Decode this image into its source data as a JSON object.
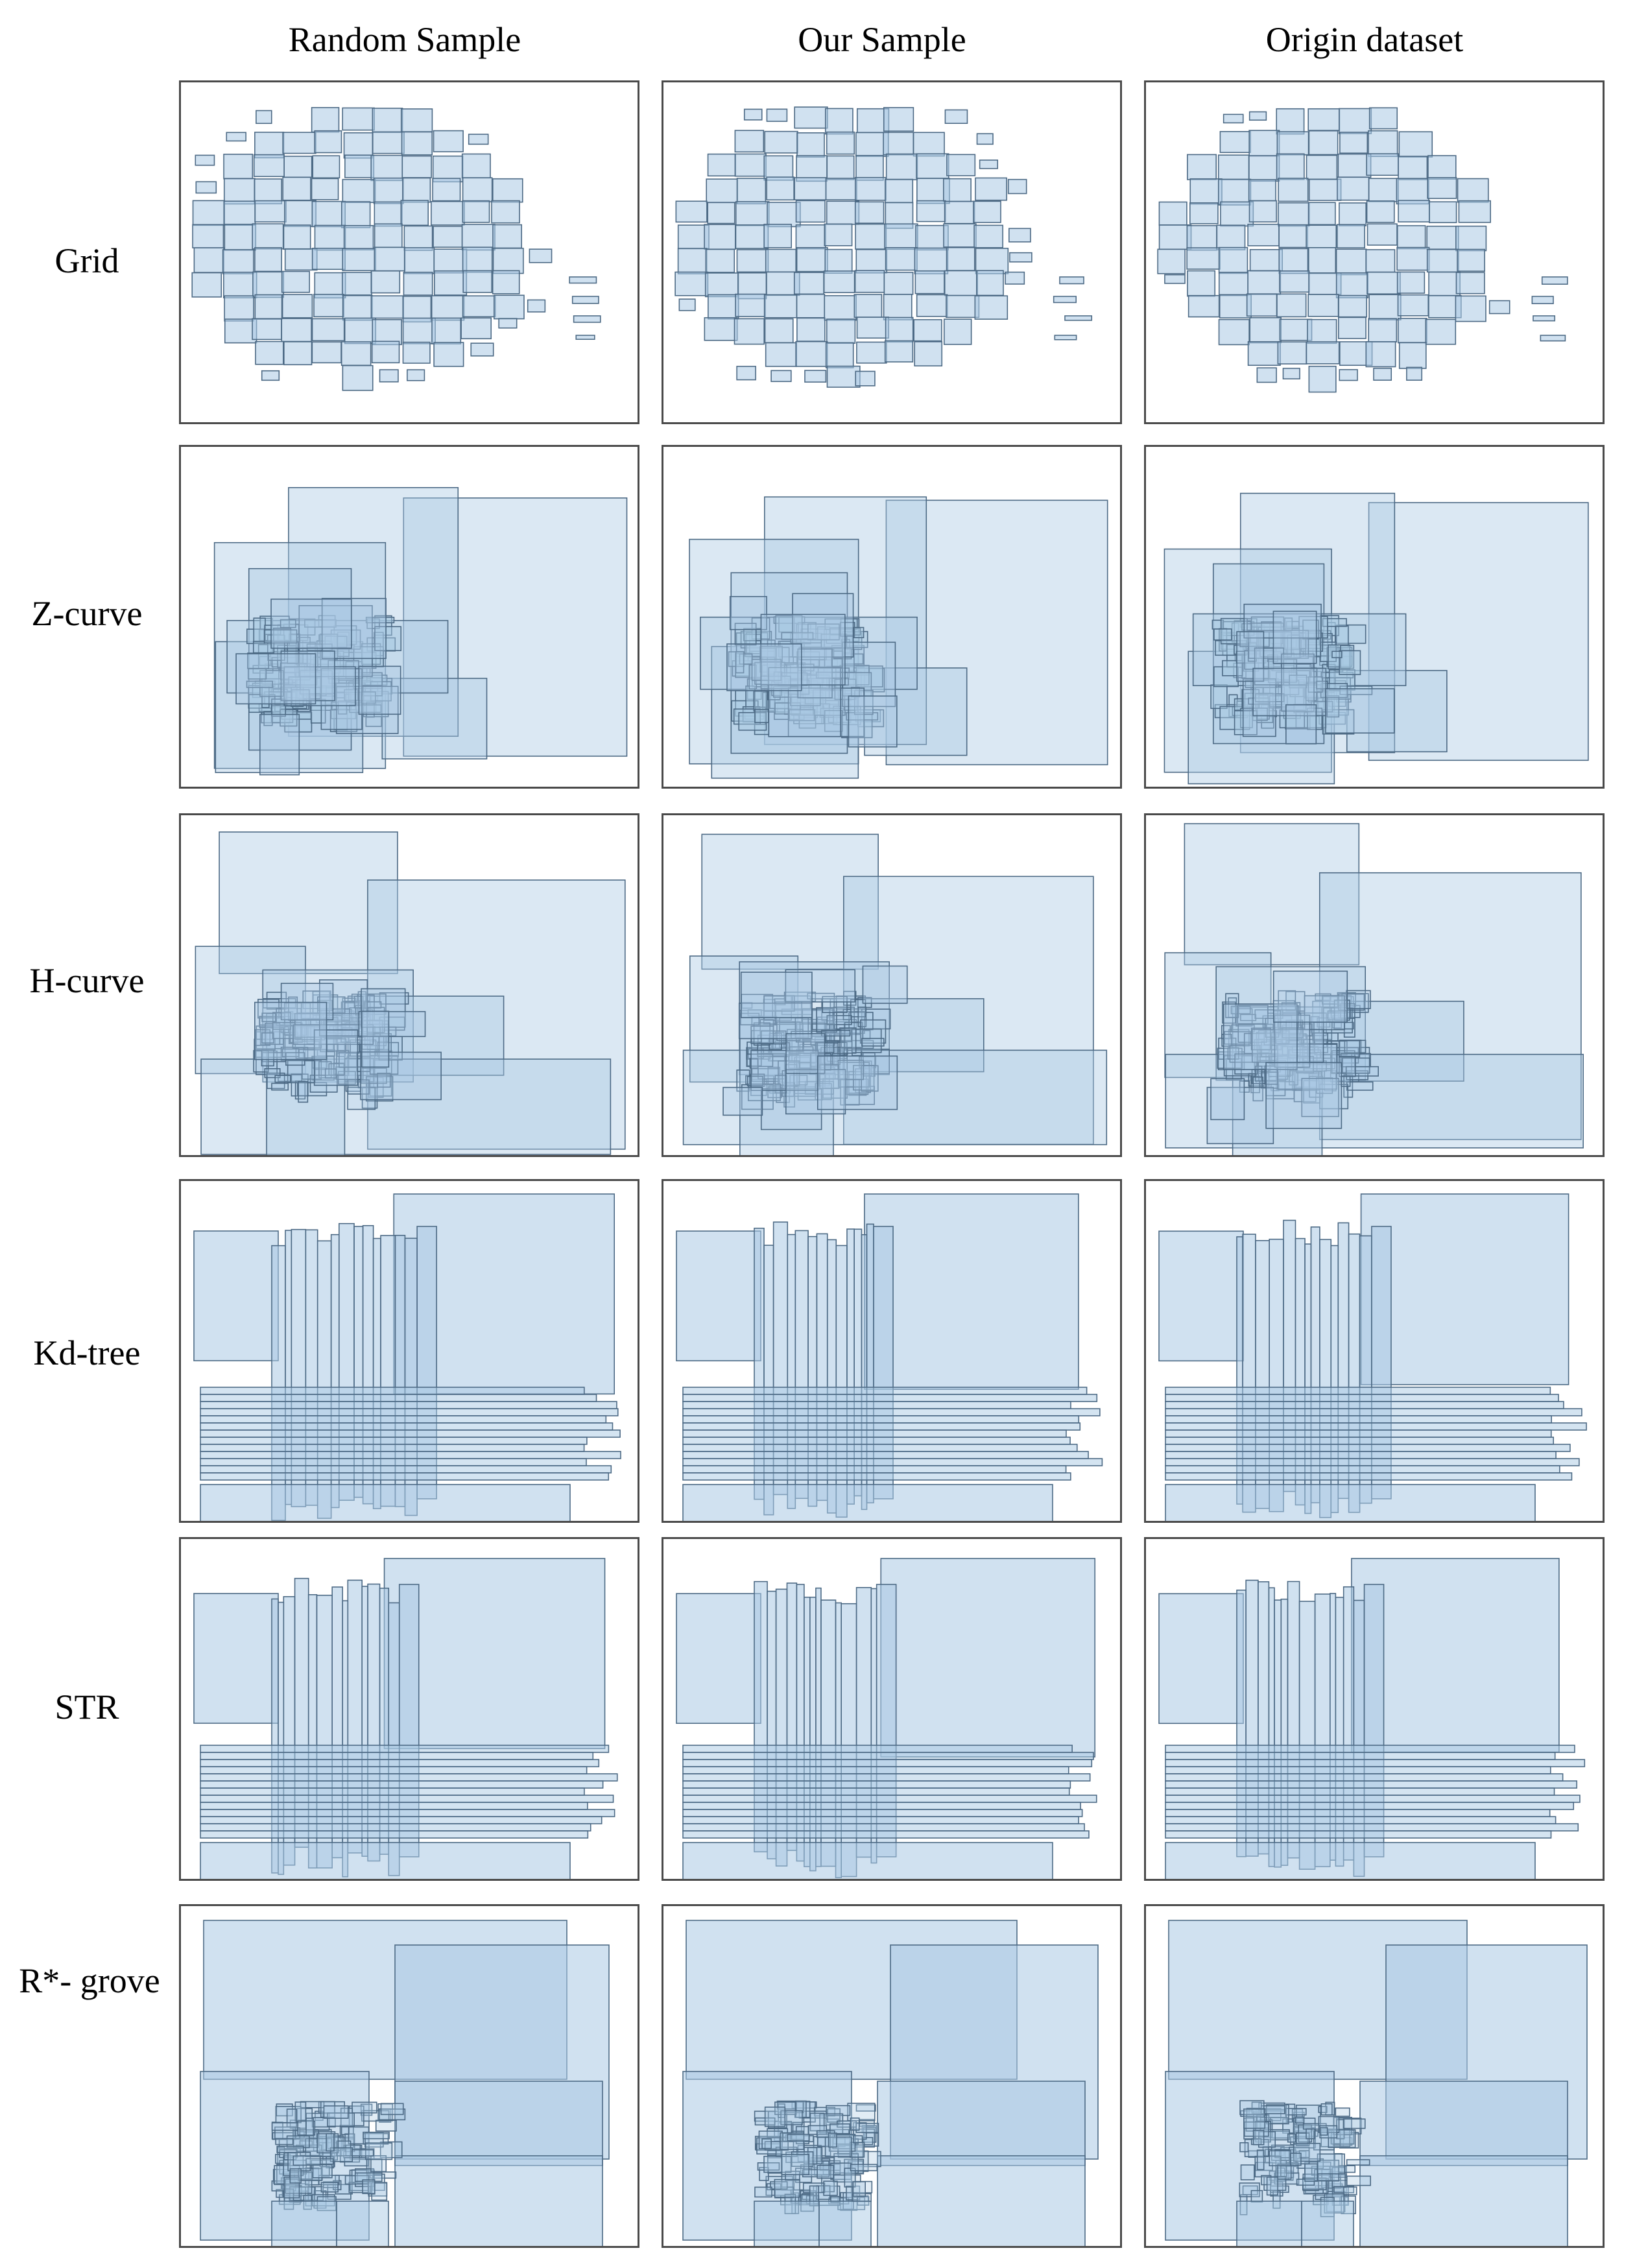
{
  "figure": {
    "columns": [
      "Random Sample",
      "Our Sample",
      "Origin dataset"
    ],
    "rows": [
      {
        "key": "grid",
        "label": "Grid"
      },
      {
        "key": "zcurve",
        "label": "Z-curve"
      },
      {
        "key": "hcurve",
        "label": "H-curve"
      },
      {
        "key": "kdtree",
        "label": "Kd-tree"
      },
      {
        "key": "str",
        "label": "STR"
      },
      {
        "key": "rgrove",
        "label": "R*- grove"
      }
    ]
  },
  "colors": {
    "rect_fill": "#a9c9e3",
    "rect_stroke": "#4d6a85",
    "panel_border": "#4a4a4a"
  }
}
